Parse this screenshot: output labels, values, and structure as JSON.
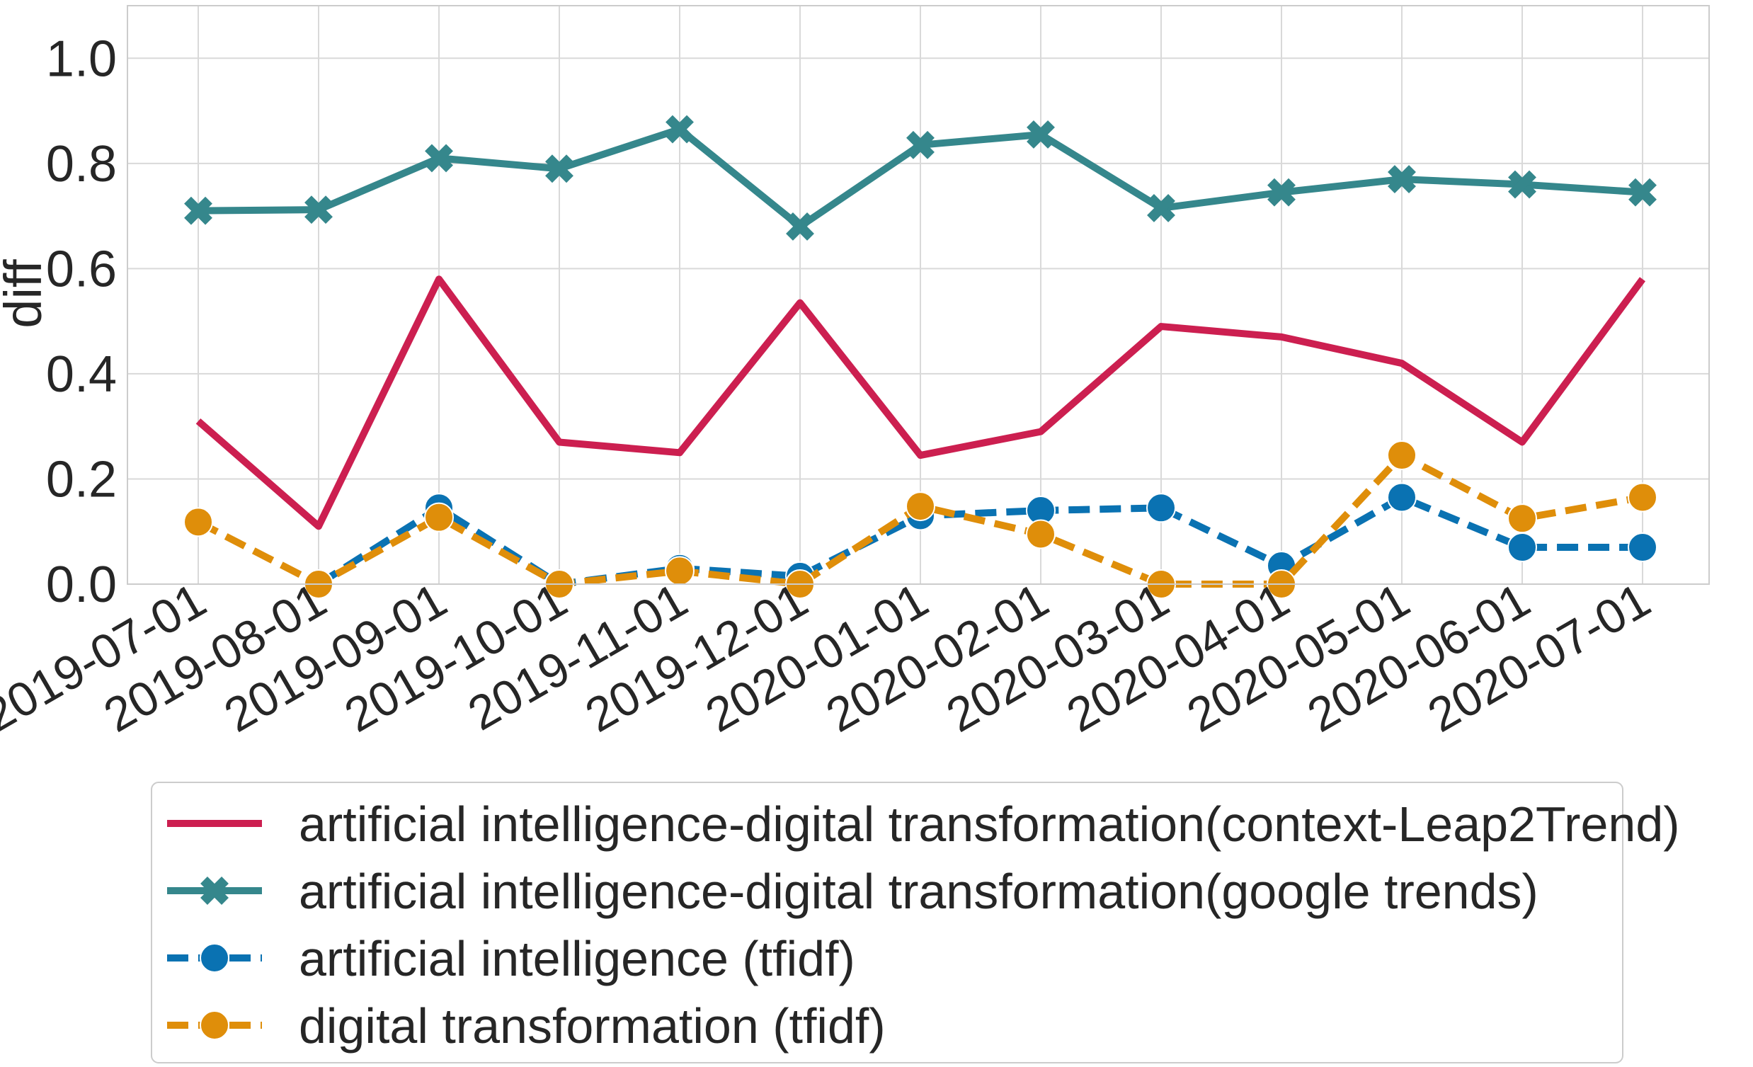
{
  "chart_data": {
    "type": "line",
    "title": "",
    "xlabel": "",
    "ylabel": "diff",
    "ylim": [
      0.0,
      1.1
    ],
    "yticks": [
      0.0,
      0.2,
      0.4,
      0.6,
      0.8,
      1.0
    ],
    "ytick_labels": [
      "0.0",
      "0.2",
      "0.4",
      "0.6",
      "0.8",
      "1.0"
    ],
    "x_tick_labels": [
      "2019-07-01",
      "2019-08-01",
      "2019-09-01",
      "2019-10-01",
      "2019-11-01",
      "2019-12-01",
      "2020-01-01",
      "2020-02-01",
      "2020-03-01",
      "2020-04-01",
      "2020-05-01",
      "2020-06-01",
      "2020-07-01"
    ],
    "grid": true,
    "legend_position": "below plot",
    "series": [
      {
        "name": "artificial intelligence-digital transformation(context-Leap2Trend)",
        "color": "#cc1f50",
        "style": "solid",
        "marker": "none",
        "values": [
          0.31,
          0.11,
          0.58,
          0.27,
          0.25,
          0.535,
          0.245,
          0.29,
          0.49,
          0.47,
          0.42,
          0.27,
          0.58
        ]
      },
      {
        "name": "artificial intelligence-digital transformation(google trends)",
        "color": "#35878c",
        "style": "solid",
        "marker": "x",
        "values": [
          0.71,
          0.712,
          0.81,
          0.79,
          0.865,
          0.68,
          0.835,
          0.855,
          0.715,
          0.745,
          0.77,
          0.76,
          0.745
        ]
      },
      {
        "name": "artificial intelligence (tfidf)",
        "color": "#0a72b2",
        "style": "dashed",
        "marker": "circle",
        "values": [
          null,
          0.0,
          0.145,
          0.0,
          0.03,
          0.015,
          0.13,
          0.14,
          0.145,
          0.035,
          0.165,
          0.07,
          0.07
        ]
      },
      {
        "name": "digital transformation (tfidf)",
        "color": "#df8e0a",
        "style": "dashed",
        "marker": "circle",
        "values": [
          0.118,
          0.0,
          0.127,
          0.0,
          0.025,
          0.0,
          0.148,
          0.095,
          0.0,
          0.0,
          0.245,
          0.125,
          0.165
        ]
      }
    ]
  }
}
